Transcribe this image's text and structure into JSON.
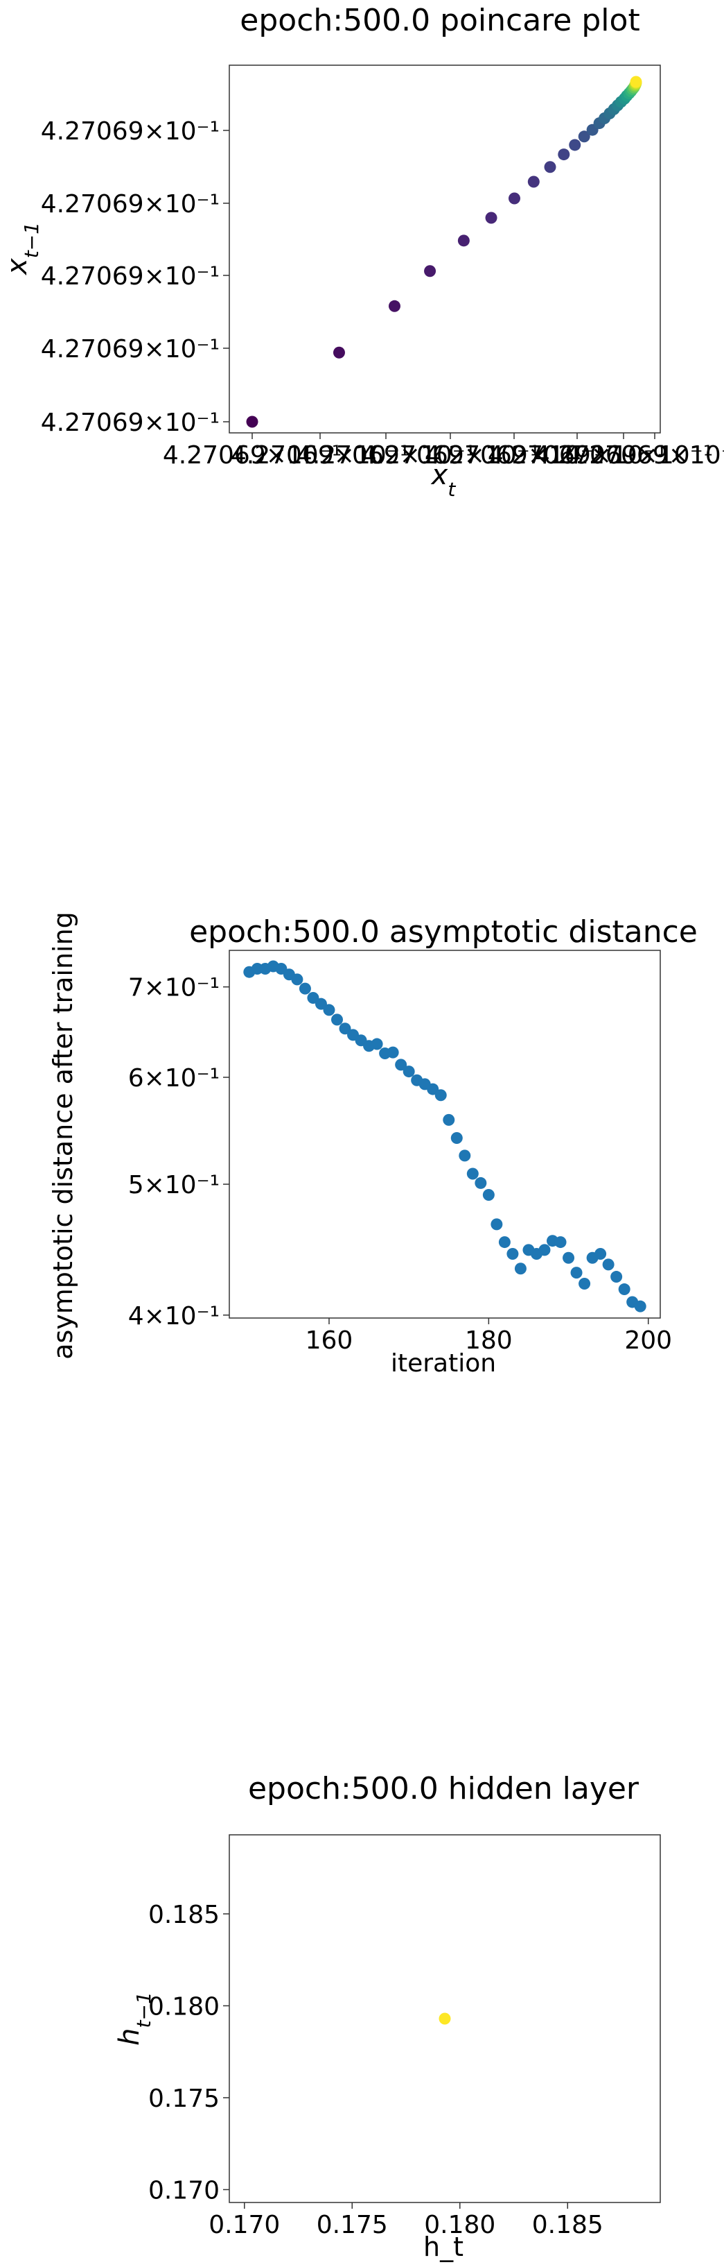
{
  "chart_data": [
    {
      "type": "scatter",
      "title": "epoch:500.0 poincare plot",
      "xlabel": "x_t",
      "ylabel": "x_{t-1}",
      "x_tick_labels": [
        "4.27069×10⁻¹",
        "4.27069×10⁻¹",
        "4.27069×10⁻¹",
        "4.27069×10⁻¹",
        "4.27069×10⁻¹",
        "4.27069×10⁻¹",
        "4.27069×10⁻¹",
        "4.27069×10⁻¹"
      ],
      "y_tick_labels": [
        "4.27069×10⁻¹",
        "4.27069×10⁻¹",
        "4.27069×10⁻¹",
        "4.27069×10⁻¹",
        "4.27069×10⁻¹"
      ],
      "colormap": "viridis",
      "points": [
        {
          "x": 0.0,
          "y": 0.0,
          "c": 0.0
        },
        {
          "x": 0.2265,
          "y": 0.2035,
          "c": 0.03
        },
        {
          "x": 0.3709,
          "y": 0.3402,
          "c": 0.05
        },
        {
          "x": 0.4631,
          "y": 0.4433,
          "c": 0.07
        },
        {
          "x": 0.5512,
          "y": 0.533,
          "c": 0.09
        },
        {
          "x": 0.6228,
          "y": 0.6,
          "c": 0.11
        },
        {
          "x": 0.6832,
          "y": 0.6571,
          "c": 0.13
        },
        {
          "x": 0.7334,
          "y": 0.7062,
          "c": 0.15
        },
        {
          "x": 0.7762,
          "y": 0.7495,
          "c": 0.18
        },
        {
          "x": 0.8119,
          "y": 0.7866,
          "c": 0.2
        },
        {
          "x": 0.8407,
          "y": 0.8144,
          "c": 0.22
        },
        {
          "x": 0.865,
          "y": 0.8392,
          "c": 0.25
        },
        {
          "x": 0.8865,
          "y": 0.8588,
          "c": 0.28
        },
        {
          "x": 0.9045,
          "y": 0.8784,
          "c": 0.31
        },
        {
          "x": 0.918,
          "y": 0.8928,
          "c": 0.34
        },
        {
          "x": 0.9313,
          "y": 0.9072,
          "c": 0.37
        },
        {
          "x": 0.9426,
          "y": 0.9196,
          "c": 0.4
        },
        {
          "x": 0.9522,
          "y": 0.9309,
          "c": 0.44
        },
        {
          "x": 0.9611,
          "y": 0.9412,
          "c": 0.48
        },
        {
          "x": 0.97,
          "y": 0.9505,
          "c": 0.52
        },
        {
          "x": 0.976,
          "y": 0.9588,
          "c": 0.56
        },
        {
          "x": 0.982,
          "y": 0.966,
          "c": 0.6
        },
        {
          "x": 0.9868,
          "y": 0.9722,
          "c": 0.65
        },
        {
          "x": 0.991,
          "y": 0.9784,
          "c": 0.7
        },
        {
          "x": 0.9946,
          "y": 0.9835,
          "c": 0.76
        },
        {
          "x": 0.997,
          "y": 0.9887,
          "c": 0.82
        },
        {
          "x": 0.9988,
          "y": 0.9928,
          "c": 0.88
        },
        {
          "x": 1.0,
          "y": 0.9969,
          "c": 0.94
        },
        {
          "x": 1.0,
          "y": 1.0,
          "c": 1.0
        }
      ]
    },
    {
      "type": "scatter",
      "title": "epoch:500.0 asymptotic distance",
      "xlabel": "iteration",
      "ylabel": "asymptotic distance after training",
      "yscale": "log",
      "xlim": [
        147.5,
        201.5
      ],
      "ylim": [
        0.398,
        0.745
      ],
      "x_ticks": [
        160,
        180,
        200
      ],
      "y_ticks": [
        0.4,
        0.5,
        0.6,
        0.7
      ],
      "y_tick_labels": [
        "4×10⁻¹",
        "5×10⁻¹",
        "6×10⁻¹",
        "7×10⁻¹"
      ],
      "color": "#1f77b4",
      "x": [
        150,
        151,
        152,
        153,
        154,
        155,
        156,
        157,
        158,
        159,
        160,
        161,
        162,
        163,
        164,
        165,
        166,
        167,
        168,
        169,
        170,
        171,
        172,
        173,
        174,
        175,
        176,
        177,
        178,
        179,
        180,
        181,
        182,
        183,
        184,
        185,
        186,
        187,
        188,
        189,
        190,
        191,
        192,
        193,
        194,
        195,
        196,
        197,
        198,
        199
      ],
      "y": [
        0.718,
        0.722,
        0.722,
        0.725,
        0.722,
        0.715,
        0.709,
        0.698,
        0.687,
        0.68,
        0.673,
        0.662,
        0.652,
        0.645,
        0.639,
        0.633,
        0.635,
        0.625,
        0.626,
        0.613,
        0.606,
        0.597,
        0.593,
        0.588,
        0.582,
        0.558,
        0.541,
        0.525,
        0.509,
        0.501,
        0.491,
        0.467,
        0.453,
        0.444,
        0.433,
        0.447,
        0.444,
        0.447,
        0.454,
        0.453,
        0.441,
        0.43,
        0.422,
        0.441,
        0.444,
        0.436,
        0.427,
        0.418,
        0.409,
        0.406
      ]
    },
    {
      "type": "scatter",
      "title": "epoch:500.0 hidden layer",
      "xlabel": "h_t",
      "ylabel": "h_{t-1}",
      "xlim": [
        0.1693,
        0.1893
      ],
      "ylim": [
        0.1693,
        0.1893
      ],
      "x_ticks": [
        0.17,
        0.175,
        0.18,
        0.185
      ],
      "y_ticks": [
        0.17,
        0.175,
        0.18,
        0.185
      ],
      "x_tick_labels": [
        "0.170",
        "0.175",
        "0.180",
        "0.185"
      ],
      "y_tick_labels": [
        "0.170",
        "0.175",
        "0.180",
        "0.185"
      ],
      "color": "#fde725",
      "points": [
        {
          "x": 0.1793,
          "y": 0.1793
        }
      ]
    }
  ]
}
